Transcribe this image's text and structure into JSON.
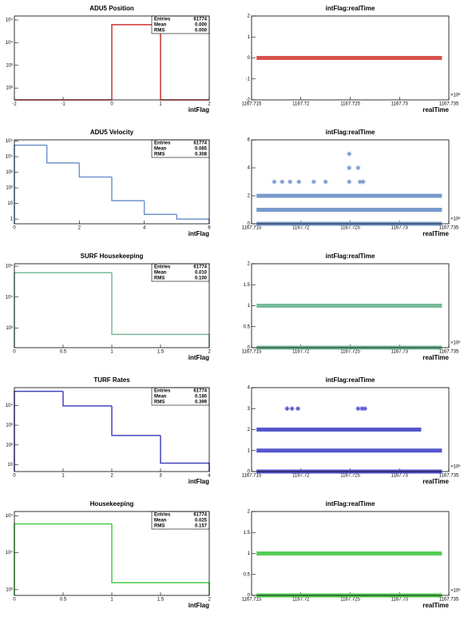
{
  "chart_data": [
    {
      "type": "histogram",
      "title": "ADU5 Position",
      "xlabel": "intFlag",
      "color": "#cc3333",
      "bins": [
        -2,
        -1,
        0,
        1,
        2
      ],
      "values": [
        0,
        0,
        61774,
        0
      ],
      "log_y": true,
      "xlim": [
        -2,
        2
      ],
      "ylim": [
        30,
        150000
      ],
      "xticks": [
        -2,
        -1,
        0,
        1,
        2
      ],
      "yticks": [
        {
          "value": 100,
          "label": "10²"
        },
        {
          "value": 1000,
          "label": "10³"
        },
        {
          "value": 10000,
          "label": "10⁴"
        },
        {
          "value": 100000,
          "label": "10⁵"
        }
      ],
      "stats": {
        "names": [
          "Entries",
          "Mean",
          "RMS"
        ],
        "values": [
          "61774",
          "0.000",
          "0.000"
        ]
      }
    },
    {
      "type": "scatter",
      "title": "intFlag:realTime",
      "xlabel": "realTime",
      "x_multiplier_label": "×10⁶",
      "color": "#d9534f",
      "xlim": [
        1167.715,
        1167.735
      ],
      "ylim": [
        -2,
        2
      ],
      "xticks": [
        1167.715,
        1167.72,
        1167.725,
        1167.73,
        1167.735
      ],
      "yticks": [
        -2,
        -1,
        0,
        1,
        2
      ],
      "bands": [
        {
          "y": 0,
          "xrange": [
            1167.7155,
            1167.7343
          ]
        }
      ]
    },
    {
      "type": "histogram",
      "title": "ADU5 Velocity",
      "xlabel": "intFlag",
      "color": "#6f94cc",
      "bins": [
        0,
        1,
        2,
        3,
        4,
        5,
        6
      ],
      "values": [
        55000,
        4000,
        500,
        15,
        2,
        1
      ],
      "log_y": true,
      "xlim": [
        0,
        6
      ],
      "ylim": [
        0.5,
        120000
      ],
      "xticks": [
        0,
        2,
        4,
        6
      ],
      "yticks": [
        1,
        10,
        {
          "value": 100,
          "label": "10²"
        },
        {
          "value": 1000,
          "label": "10³"
        },
        {
          "value": 10000,
          "label": "10⁴"
        },
        {
          "value": 100000,
          "label": "10⁵"
        }
      ],
      "stats": {
        "names": [
          "Entries",
          "Mean",
          "RMS"
        ],
        "values": [
          "61774",
          "0.085",
          "0.308"
        ]
      }
    },
    {
      "type": "scatter",
      "title": "intFlag:realTime",
      "xlabel": "realTime",
      "x_multiplier_label": "×10⁶",
      "color": "#7799cc",
      "xlim": [
        1167.715,
        1167.735
      ],
      "ylim": [
        0,
        6
      ],
      "xticks": [
        1167.715,
        1167.72,
        1167.725,
        1167.73,
        1167.735
      ],
      "yticks": [
        0,
        2,
        4,
        6
      ],
      "bands": [
        {
          "y": 0,
          "xrange": [
            1167.7155,
            1167.7343
          ]
        },
        {
          "y": 1,
          "xrange": [
            1167.7155,
            1167.7343
          ]
        },
        {
          "y": 2,
          "xrange": [
            1167.7155,
            1167.7343
          ]
        }
      ],
      "points": {
        "x": [
          1167.7173,
          1167.7181,
          1167.7189,
          1167.7198,
          1167.7213,
          1167.7225,
          1167.7249,
          1167.726,
          1167.7263,
          1167.7249,
          1167.7249,
          1167.7258
        ],
        "y": [
          3,
          3,
          3,
          3,
          3,
          3,
          3,
          3,
          3,
          5,
          4,
          4
        ]
      }
    },
    {
      "type": "histogram",
      "title": "SURF Housekeeping",
      "xlabel": "intFlag",
      "color": "#77bb99",
      "bins": [
        0,
        1,
        2
      ],
      "values": [
        61156,
        618
      ],
      "log_y": true,
      "xlim": [
        0,
        2
      ],
      "ylim": [
        230,
        120000
      ],
      "xticks": [
        0,
        0.5,
        1,
        1.5,
        2
      ],
      "yticks": [
        {
          "value": 1000,
          "label": "10³"
        },
        {
          "value": 10000,
          "label": "10⁴"
        },
        {
          "value": 100000,
          "label": "10⁵"
        }
      ],
      "stats": {
        "names": [
          "Entries",
          "Mean",
          "RMS"
        ],
        "values": [
          "61774",
          "0.010",
          "0.100"
        ]
      }
    },
    {
      "type": "scatter",
      "title": "intFlag:realTime",
      "xlabel": "realTime",
      "x_multiplier_label": "×10⁶",
      "color": "#77bb99",
      "xlim": [
        1167.715,
        1167.735
      ],
      "ylim": [
        0,
        2
      ],
      "xticks": [
        1167.715,
        1167.72,
        1167.725,
        1167.73,
        1167.735
      ],
      "yticks": [
        0,
        0.5,
        1,
        1.5,
        2
      ],
      "bands": [
        {
          "y": 0,
          "xrange": [
            1167.7155,
            1167.7343
          ]
        },
        {
          "y": 1,
          "xrange": [
            1167.7155,
            1167.7343
          ]
        }
      ]
    },
    {
      "type": "histogram",
      "title": "TURF Rates",
      "xlabel": "intFlag",
      "color": "#4444bb",
      "bins": [
        0,
        1,
        2,
        3,
        4
      ],
      "values": [
        52000,
        9500,
        300,
        12
      ],
      "log_y": true,
      "xlim": [
        0,
        4
      ],
      "ylim": [
        4.5,
        80000
      ],
      "xticks": [
        0,
        1,
        2,
        3,
        4
      ],
      "yticks": [
        10,
        {
          "value": 100,
          "label": "10²"
        },
        {
          "value": 1000,
          "label": "10³"
        },
        {
          "value": 10000,
          "label": "10⁴"
        }
      ],
      "stats": {
        "names": [
          "Entries",
          "Mean",
          "RMS"
        ],
        "values": [
          "61774",
          "0.180",
          "0.399"
        ]
      }
    },
    {
      "type": "scatter",
      "title": "intFlag:realTime",
      "xlabel": "realTime",
      "x_multiplier_label": "×10⁶",
      "color": "#5555cc",
      "xlim": [
        1167.715,
        1167.735
      ],
      "ylim": [
        0,
        4
      ],
      "xticks": [
        1167.715,
        1167.72,
        1167.725,
        1167.73,
        1167.735
      ],
      "yticks": [
        0,
        1,
        2,
        3,
        4
      ],
      "bands": [
        {
          "y": 0,
          "xrange": [
            1167.7155,
            1167.7343
          ]
        },
        {
          "y": 1,
          "xrange": [
            1167.7155,
            1167.7343
          ]
        },
        {
          "y": 2,
          "xrange": [
            1167.7155,
            1167.7322
          ]
        }
      ],
      "points": {
        "x": [
          1167.7186,
          1167.7191,
          1167.7197,
          1167.7258,
          1167.7262,
          1167.7265
        ],
        "y": [
          3,
          3,
          3,
          3,
          3,
          3
        ]
      }
    },
    {
      "type": "histogram",
      "title": "Housekeeping",
      "xlabel": "intFlag",
      "color": "#44cc44",
      "bins": [
        0,
        1,
        2
      ],
      "values": [
        60224,
        1550
      ],
      "log_y": true,
      "xlim": [
        0,
        2
      ],
      "ylim": [
        700,
        130000
      ],
      "xticks": [
        0,
        0.5,
        1,
        1.5,
        2
      ],
      "yticks": [
        {
          "value": 1000,
          "label": "10³"
        },
        {
          "value": 10000,
          "label": "10⁴"
        },
        {
          "value": 100000,
          "label": "10⁵"
        }
      ],
      "stats": {
        "names": [
          "Entries",
          "Mean",
          "RMS"
        ],
        "values": [
          "61774",
          "0.025",
          "0.157"
        ]
      }
    },
    {
      "type": "scatter",
      "title": "intFlag:realTime",
      "xlabel": "realTime",
      "x_multiplier_label": "×10⁶",
      "color": "#55cc55",
      "xlim": [
        1167.715,
        1167.735
      ],
      "ylim": [
        0,
        2
      ],
      "xticks": [
        1167.715,
        1167.72,
        1167.725,
        1167.73,
        1167.735
      ],
      "yticks": [
        0,
        0.5,
        1,
        1.5,
        2
      ],
      "bands": [
        {
          "y": 0,
          "xrange": [
            1167.7155,
            1167.7343
          ]
        },
        {
          "y": 1,
          "xrange": [
            1167.7155,
            1167.7343
          ]
        }
      ]
    }
  ]
}
